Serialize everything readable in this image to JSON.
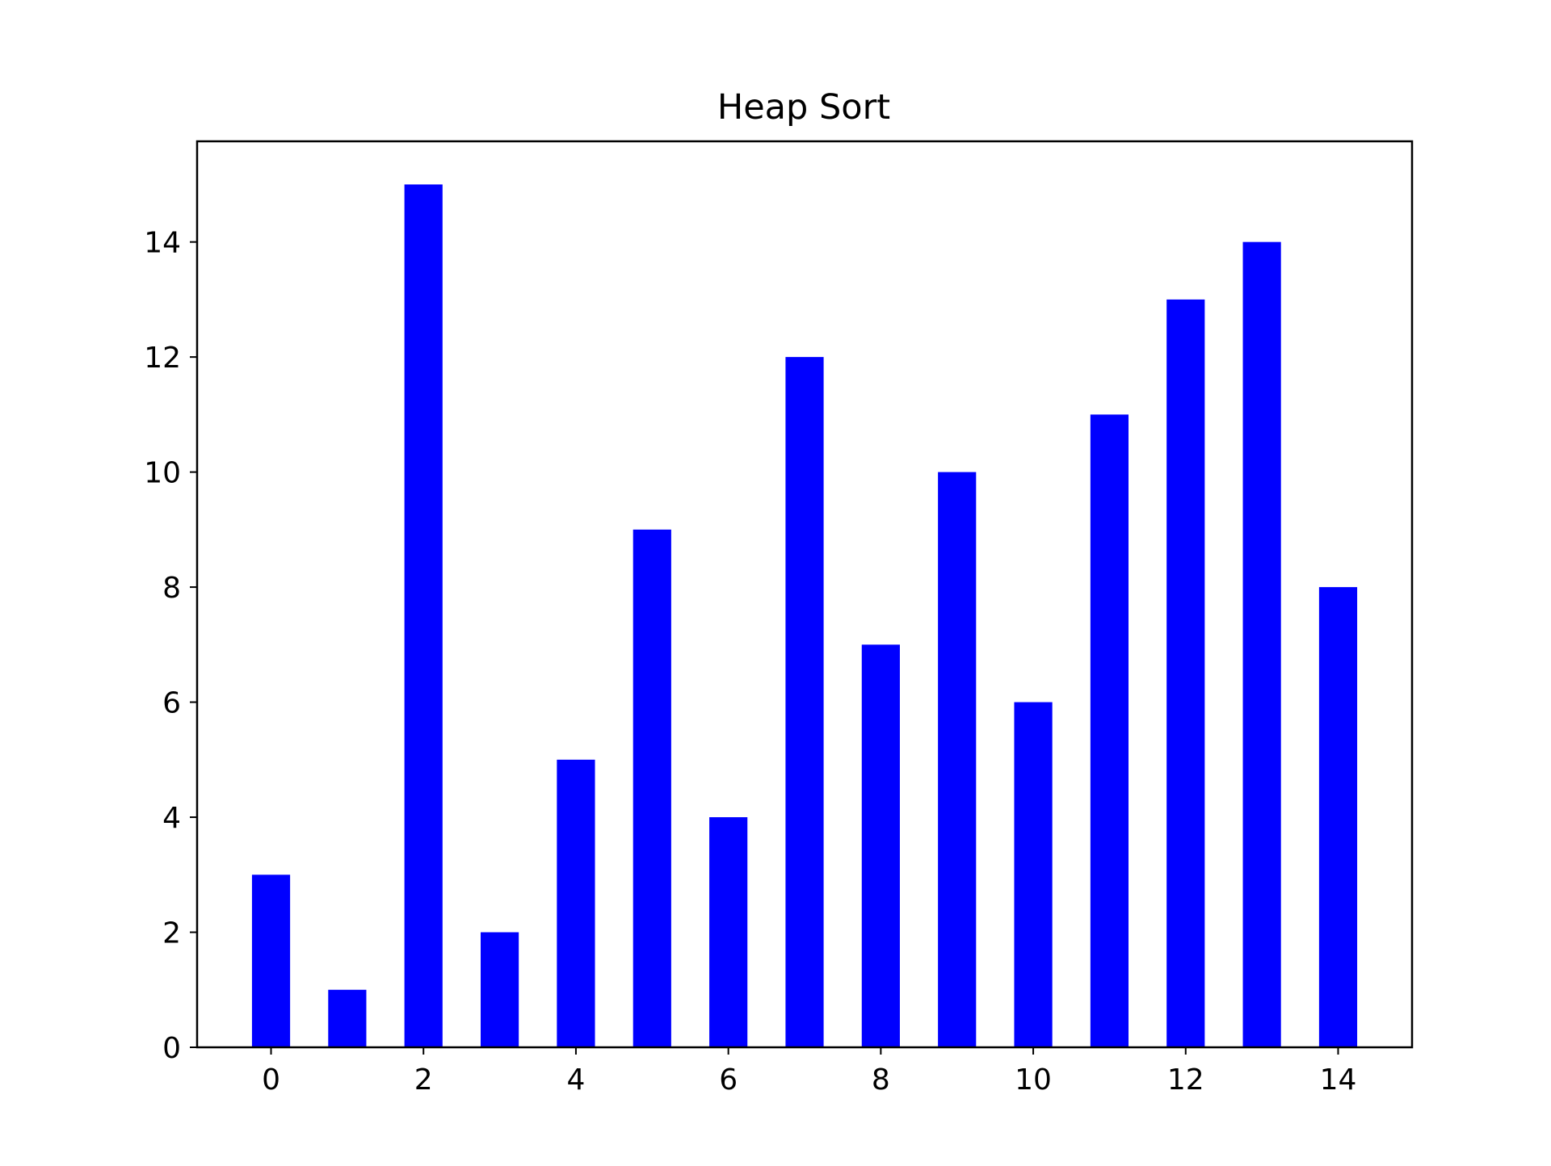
{
  "chart_data": {
    "type": "bar",
    "title": "Heap Sort",
    "xlabel": "",
    "ylabel": "",
    "x": [
      0,
      1,
      2,
      3,
      4,
      5,
      6,
      7,
      8,
      9,
      10,
      11,
      12,
      13,
      14
    ],
    "values": [
      3,
      1,
      15,
      2,
      5,
      9,
      4,
      12,
      7,
      10,
      6,
      11,
      13,
      14,
      8
    ],
    "xlim": [
      -0.97,
      14.97
    ],
    "ylim": [
      0,
      15.75
    ],
    "xticks": [
      "0",
      "2",
      "4",
      "6",
      "8",
      "10",
      "12",
      "14"
    ],
    "yticks": [
      "0",
      "2",
      "4",
      "6",
      "8",
      "10",
      "12",
      "14"
    ],
    "bar_color": "#0000ff",
    "grid": false,
    "legend": "none"
  }
}
